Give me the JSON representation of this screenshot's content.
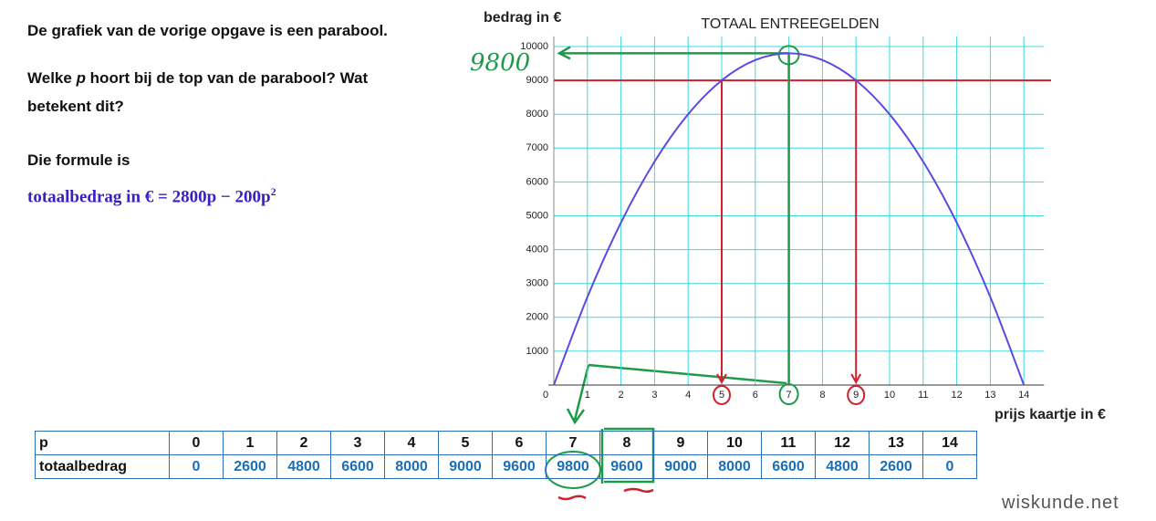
{
  "text": {
    "line1": "De grafiek van de vorige opgave is een parabool.",
    "question": [
      "Welke ",
      "p",
      " hoort bij de top van de parabool? Wat betekent dit?"
    ],
    "intro": "Die formule is",
    "formula": {
      "lhs": "totaalbedrag in €",
      "eq": "=",
      "rhs": "2800p − 200p",
      "exp": "2"
    }
  },
  "chart_data": {
    "type": "line",
    "title": "TOTAAL ENTREEGELDEN",
    "y_label": "bedrag in €",
    "x_label": "prijs kaartje in €",
    "x": [
      0,
      1,
      2,
      3,
      4,
      5,
      6,
      7,
      8,
      9,
      10,
      11,
      12,
      13,
      14
    ],
    "series": [
      {
        "color": "#5b4ae0",
        "values": [
          0,
          2600,
          4800,
          6600,
          8000,
          9000,
          9600,
          9800,
          9600,
          9000,
          8000,
          6600,
          4800,
          2600,
          0
        ]
      }
    ],
    "xlim": [
      0,
      14.6
    ],
    "ylim": [
      0,
      10300
    ],
    "xticks": [
      0,
      1,
      2,
      3,
      4,
      5,
      6,
      7,
      8,
      9,
      10,
      11,
      12,
      13,
      14
    ],
    "yticks": [
      1000,
      2000,
      3000,
      4000,
      5000,
      6000,
      7000,
      8000,
      9000,
      10000
    ],
    "grid": true,
    "grid_color": "#3fd8dc",
    "annotations": {
      "red_color": "#d0202e",
      "red_level": 9000,
      "red_x": [
        5,
        9
      ],
      "green_color": "#1f9a4a",
      "green_x": 7,
      "green_level": 9800,
      "note": "9800"
    }
  },
  "table": {
    "rows": [
      [
        "p",
        "0",
        "1",
        "2",
        "3",
        "4",
        "5",
        "6",
        "7",
        "8",
        "9",
        "10",
        "11",
        "12",
        "13",
        "14"
      ],
      [
        "totaalbedrag",
        "0",
        "2600",
        "4800",
        "6600",
        "8000",
        "9000",
        "9600",
        "9800",
        "9600",
        "9000",
        "8000",
        "6600",
        "4800",
        "2600",
        "0"
      ]
    ]
  },
  "watermark": "wiskunde.net"
}
